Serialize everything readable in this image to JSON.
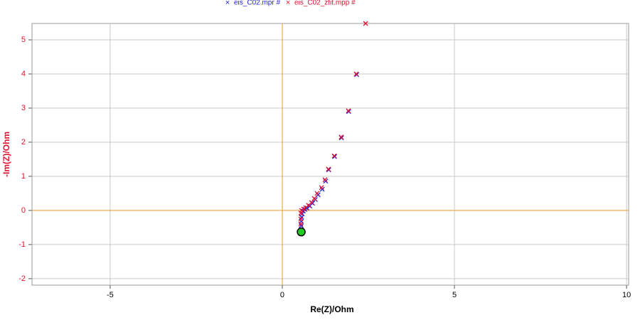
{
  "chart_data": {
    "type": "scatter",
    "x_label": "Re(Z)/Ohm",
    "y_label": "-Im(Z)/Ohm",
    "xlim": [
      -7.27,
      10.06
    ],
    "ylim": [
      -2.19,
      5.48
    ],
    "xticks": [
      -5,
      0,
      5,
      10
    ],
    "yticks": [
      -2,
      -1,
      0,
      1,
      2,
      3,
      4,
      5
    ],
    "grid": true,
    "legend": "top",
    "series": [
      {
        "name": "eis_C02.mpr #",
        "color": "#2020e0",
        "x": [
          2.16,
          1.93,
          1.72,
          1.52,
          1.35,
          1.26,
          1.16,
          1.04,
          0.96,
          0.88,
          0.8,
          0.72,
          0.66,
          0.61,
          0.58,
          0.56,
          0.55,
          0.55
        ],
        "values": [
          3.98,
          2.9,
          2.13,
          1.58,
          1.19,
          0.86,
          0.62,
          0.46,
          0.32,
          0.21,
          0.13,
          0.07,
          0.03,
          -0.02,
          -0.1,
          -0.2,
          -0.32,
          -0.45
        ]
      },
      {
        "name": "eis_C02_zfit.mpp #",
        "color": "#e01030",
        "x": [
          2.42,
          2.15,
          1.92,
          1.71,
          1.51,
          1.34,
          1.24,
          1.14,
          1.01,
          0.93,
          0.85,
          0.76,
          0.68,
          0.62,
          0.56,
          0.54,
          0.54,
          0.54
        ],
        "values": [
          5.48,
          4.0,
          2.92,
          2.15,
          1.6,
          1.21,
          0.9,
          0.67,
          0.5,
          0.35,
          0.23,
          0.15,
          0.08,
          0.04,
          0.0,
          -0.08,
          -0.25,
          -0.4
        ]
      }
    ],
    "marker": {
      "x": 0.55,
      "y": -0.63,
      "color": "#22cc22"
    }
  }
}
